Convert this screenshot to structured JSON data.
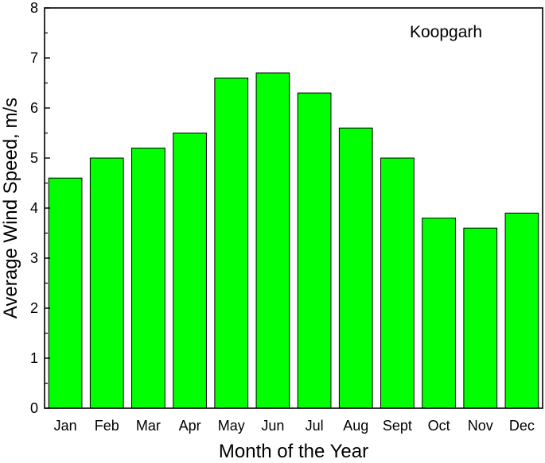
{
  "chart_data": {
    "type": "bar",
    "categories": [
      "Jan",
      "Feb",
      "Mar",
      "Apr",
      "May",
      "Jun",
      "Jul",
      "Aug",
      "Sept",
      "Oct",
      "Nov",
      "Dec"
    ],
    "values": [
      4.6,
      5.0,
      5.2,
      5.5,
      6.6,
      6.7,
      6.3,
      5.6,
      5.0,
      3.8,
      3.6,
      3.9
    ],
    "xlabel": "Month of the Year",
    "ylabel": "Average Wind Speed, m/s",
    "ylim": [
      0,
      8
    ],
    "yticks": [
      0,
      1,
      2,
      3,
      4,
      5,
      6,
      7,
      8
    ],
    "annotation": "Koopgarh",
    "bar_color": "#00ff00",
    "bar_edge_color": "#000000",
    "grid": false,
    "legend": "none"
  }
}
